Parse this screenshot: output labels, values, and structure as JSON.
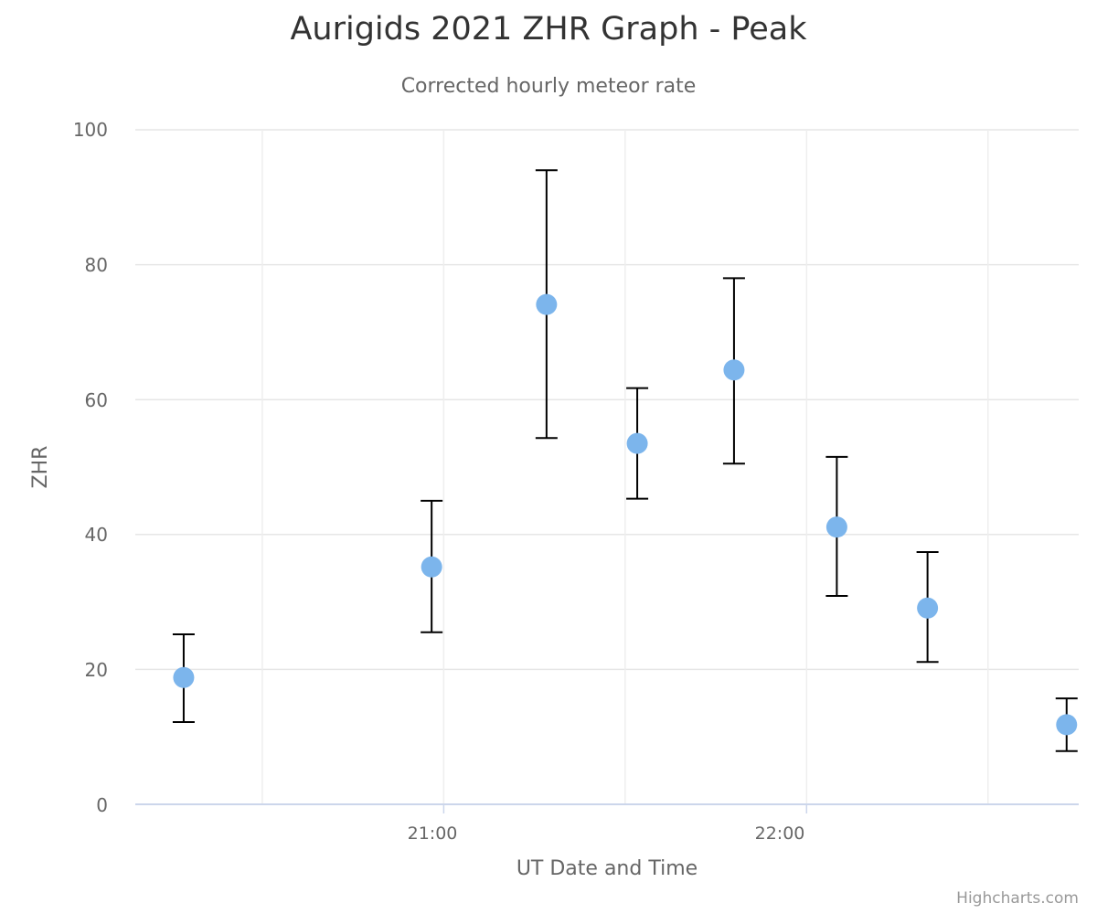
{
  "title": "Aurigids 2021 ZHR Graph - Peak",
  "subtitle": "Corrected hourly meteor rate",
  "credits": "Highcharts.com",
  "colors": {
    "marker": "#7cb5ec",
    "errorbar": "#000000",
    "grid": "#e6e6e6",
    "axis_line": "#ccd6eb",
    "text": "#666666",
    "title": "#333333"
  },
  "chart_data": {
    "type": "scatter",
    "title": "Aurigids 2021 ZHR Graph - Peak",
    "subtitle": "Corrected hourly meteor rate",
    "xlabel": "UT Date and Time",
    "ylabel": "ZHR",
    "ylim": [
      0,
      100
    ],
    "yticks": [
      0,
      20,
      40,
      60,
      80,
      100
    ],
    "xticks": [
      "21:00",
      "22:00"
    ],
    "xrange": [
      "20:09",
      "22:45"
    ],
    "grid": true,
    "legend": "none",
    "series": [
      {
        "name": "ZHR",
        "type": "scatter",
        "x": [
          "20:17",
          "20:58",
          "21:17",
          "21:32",
          "21:48",
          "22:05",
          "22:20",
          "22:43"
        ],
        "values": [
          18.8,
          35.2,
          74.1,
          53.5,
          64.4,
          41.1,
          29.1,
          11.8
        ]
      },
      {
        "name": "Error",
        "type": "errorbar",
        "x": [
          "20:17",
          "20:58",
          "21:17",
          "21:32",
          "21:48",
          "22:05",
          "22:20",
          "22:43"
        ],
        "low": [
          12.2,
          25.5,
          54.3,
          45.3,
          50.5,
          30.9,
          21.1,
          7.9
        ],
        "high": [
          25.2,
          45.0,
          94.0,
          61.7,
          78.0,
          51.5,
          37.4,
          15.7
        ]
      }
    ]
  },
  "axes": {
    "y_title": "ZHR",
    "x_title": "UT Date and Time",
    "y_labels": [
      "0",
      "20",
      "40",
      "60",
      "80",
      "100"
    ],
    "x_labels": [
      "21:00",
      "22:00"
    ]
  }
}
